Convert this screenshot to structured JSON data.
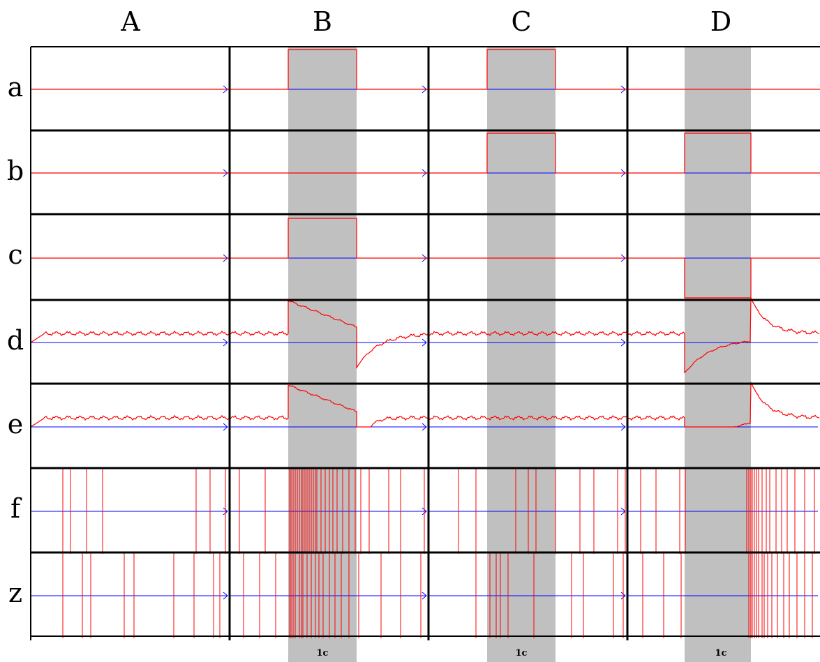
{
  "columns": [
    "A",
    "B",
    "C",
    "D"
  ],
  "rows": [
    "a",
    "b",
    "c",
    "d",
    "e",
    "f",
    "z"
  ],
  "time_scale_label": "1c",
  "colors": {
    "signal": "#ff0000",
    "baseline": "#0000ff",
    "stimulus_band": "#c0c0c0",
    "grid": "#000000"
  },
  "stimulus_columns": [
    "B",
    "C",
    "D"
  ],
  "inputs": {
    "a": {
      "B": 1,
      "C": 1,
      "D": 0
    },
    "b": {
      "B": 0,
      "C": 1,
      "D": 1
    },
    "c": {
      "B": 1,
      "C": 0,
      "D": -1
    }
  },
  "traces": {
    "d": {
      "A": "resting",
      "B": "excitation",
      "C": "resting",
      "D": "inhibition"
    },
    "e": {
      "A": "resting",
      "B": "excitation",
      "C": "resting",
      "D": "inhibition"
    }
  },
  "spikes": {
    "f": {
      "A": [
        0.16,
        0.2,
        0.28,
        0.36,
        0.83,
        0.9,
        0.98
      ],
      "B": [
        0.05,
        0.18,
        0.3,
        0.31,
        0.32,
        0.33,
        0.34,
        0.35,
        0.36,
        0.37,
        0.38,
        0.39,
        0.4,
        0.41,
        0.42,
        0.43,
        0.44,
        0.46,
        0.48,
        0.5,
        0.52,
        0.54,
        0.57,
        0.6,
        0.63,
        0.66,
        0.7,
        0.8,
        0.86,
        0.98
      ],
      "C": [
        0.15,
        0.24,
        0.44,
        0.5,
        0.54,
        0.64,
        0.76,
        0.83,
        0.95,
        0.99
      ],
      "D": [
        0.07,
        0.15,
        0.27,
        0.3,
        0.62,
        0.63,
        0.64,
        0.65,
        0.66,
        0.67,
        0.68,
        0.7,
        0.72,
        0.74,
        0.77,
        0.8,
        0.83,
        0.87,
        0.92,
        0.97
      ]
    },
    "z": {
      "A": [
        0.16,
        0.26,
        0.3,
        0.47,
        0.52,
        0.72,
        0.82,
        0.92,
        0.95
      ],
      "B": [
        0.07,
        0.15,
        0.23,
        0.3,
        0.31,
        0.32,
        0.33,
        0.35,
        0.36,
        0.37,
        0.39,
        0.41,
        0.43,
        0.45,
        0.47,
        0.5,
        0.53,
        0.56,
        0.6,
        0.65,
        0.76,
        0.86,
        0.96
      ],
      "C": [
        0.24,
        0.31,
        0.34,
        0.36,
        0.4,
        0.53,
        0.72,
        0.78,
        0.93,
        0.98
      ],
      "D": [
        0.08,
        0.19,
        0.28,
        0.63,
        0.64,
        0.65,
        0.66,
        0.67,
        0.68,
        0.7,
        0.71,
        0.73,
        0.75,
        0.78,
        0.81,
        0.84,
        0.88,
        0.92,
        0.96
      ]
    }
  }
}
